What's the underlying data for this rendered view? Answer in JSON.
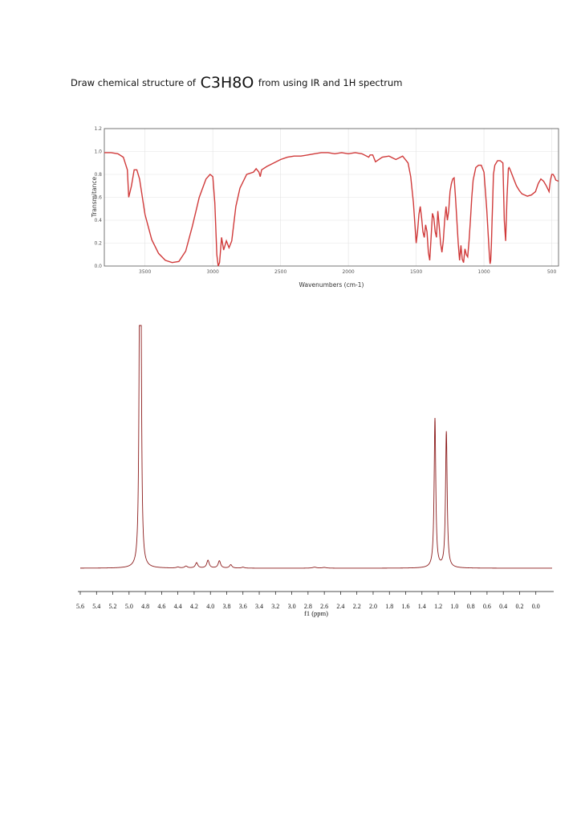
{
  "prompt": {
    "before": "Draw chemical structure of ",
    "formula": "C3H8O",
    "after": " from using IR and 1H spectrum"
  },
  "chart_data": [
    {
      "type": "line",
      "title": "",
      "xlabel": "Wavenumbers (cm-1)",
      "ylabel": "Transmitance",
      "xlim": [
        3800,
        450
      ],
      "ylim": [
        0,
        1.2
      ],
      "x_ticks": [
        3500,
        3000,
        2500,
        2000,
        1500,
        1000,
        500
      ],
      "y_ticks": [
        0.0,
        0.2,
        0.4,
        0.6,
        0.8,
        1.0,
        1.2
      ],
      "grid": true,
      "color": "#d03a3a",
      "series": [
        {
          "x": [
            3800,
            3750,
            3700,
            3660,
            3630,
            3620,
            3600,
            3580,
            3560,
            3540,
            3500,
            3450,
            3400,
            3350,
            3300,
            3250,
            3200,
            3150,
            3100,
            3050,
            3020,
            3000,
            2985,
            2970,
            2960,
            2950,
            2935,
            2920,
            2900,
            2880,
            2860,
            2830,
            2800,
            2750,
            2700,
            2680,
            2660,
            2650,
            2640,
            2600,
            2550,
            2500,
            2450,
            2400,
            2350,
            2300,
            2250,
            2200,
            2150,
            2100,
            2050,
            2000,
            1950,
            1900,
            1850,
            1840,
            1820,
            1800,
            1750,
            1700,
            1650,
            1600,
            1560,
            1540,
            1520,
            1500,
            1490,
            1480,
            1470,
            1460,
            1450,
            1440,
            1430,
            1420,
            1410,
            1400,
            1390,
            1380,
            1370,
            1360,
            1350,
            1340,
            1330,
            1320,
            1310,
            1300,
            1290,
            1280,
            1270,
            1260,
            1250,
            1240,
            1230,
            1220,
            1210,
            1200,
            1190,
            1180,
            1170,
            1160,
            1150,
            1140,
            1130,
            1120,
            1110,
            1100,
            1090,
            1080,
            1060,
            1040,
            1020,
            1000,
            980,
            960,
            955,
            950,
            945,
            940,
            935,
            930,
            920,
            900,
            880,
            860,
            850,
            840,
            830,
            820,
            815,
            810,
            800,
            780,
            760,
            740,
            720,
            700,
            680,
            650,
            620,
            600,
            580,
            560,
            540,
            520,
            510,
            500,
            490,
            480,
            470,
            450
          ],
          "y": [
            0.99,
            0.99,
            0.98,
            0.95,
            0.84,
            0.6,
            0.7,
            0.84,
            0.84,
            0.76,
            0.45,
            0.23,
            0.11,
            0.05,
            0.03,
            0.04,
            0.13,
            0.35,
            0.6,
            0.76,
            0.8,
            0.78,
            0.55,
            0.1,
            0.0,
            0.03,
            0.25,
            0.14,
            0.22,
            0.16,
            0.22,
            0.52,
            0.68,
            0.8,
            0.82,
            0.85,
            0.82,
            0.78,
            0.84,
            0.87,
            0.9,
            0.93,
            0.95,
            0.96,
            0.96,
            0.97,
            0.98,
            0.99,
            0.99,
            0.98,
            0.99,
            0.98,
            0.99,
            0.98,
            0.95,
            0.97,
            0.97,
            0.91,
            0.95,
            0.96,
            0.93,
            0.96,
            0.9,
            0.78,
            0.55,
            0.2,
            0.3,
            0.45,
            0.52,
            0.42,
            0.3,
            0.25,
            0.36,
            0.3,
            0.12,
            0.05,
            0.25,
            0.46,
            0.42,
            0.3,
            0.25,
            0.48,
            0.35,
            0.2,
            0.12,
            0.22,
            0.4,
            0.52,
            0.4,
            0.48,
            0.65,
            0.72,
            0.76,
            0.77,
            0.6,
            0.4,
            0.2,
            0.05,
            0.18,
            0.06,
            0.03,
            0.15,
            0.1,
            0.08,
            0.22,
            0.4,
            0.6,
            0.75,
            0.86,
            0.88,
            0.88,
            0.82,
            0.5,
            0.1,
            0.02,
            0.05,
            0.2,
            0.4,
            0.6,
            0.8,
            0.88,
            0.92,
            0.92,
            0.9,
            0.4,
            0.22,
            0.6,
            0.85,
            0.86,
            0.85,
            0.82,
            0.76,
            0.7,
            0.66,
            0.63,
            0.62,
            0.61,
            0.62,
            0.65,
            0.72,
            0.76,
            0.74,
            0.7,
            0.65,
            0.75,
            0.8,
            0.8,
            0.78,
            0.75,
            0.74
          ]
        }
      ]
    },
    {
      "type": "line",
      "title": "",
      "xlabel": "f1 (ppm)",
      "ylabel": "",
      "xlim": [
        5.6,
        -0.2
      ],
      "x_ticks": [
        5.6,
        5.4,
        5.2,
        5.0,
        4.8,
        4.6,
        4.4,
        4.2,
        4.0,
        3.8,
        3.6,
        3.4,
        3.2,
        3.0,
        2.8,
        2.6,
        2.4,
        2.2,
        2.0,
        1.8,
        1.6,
        1.4,
        1.2,
        1.0,
        0.8,
        0.6,
        0.4,
        0.2,
        0.0
      ],
      "color": "#8b1a1a",
      "peaks": [
        {
          "shift": 4.87,
          "height": 1.0,
          "width": 0.01
        },
        {
          "shift": 4.855,
          "height": 1.0,
          "width": 0.01
        },
        {
          "shift": 4.4,
          "height": 0.004,
          "width": 0.02
        },
        {
          "shift": 4.3,
          "height": 0.008,
          "width": 0.02
        },
        {
          "shift": 4.17,
          "height": 0.022,
          "width": 0.018
        },
        {
          "shift": 4.03,
          "height": 0.032,
          "width": 0.018
        },
        {
          "shift": 3.89,
          "height": 0.03,
          "width": 0.018
        },
        {
          "shift": 3.75,
          "height": 0.014,
          "width": 0.018
        },
        {
          "shift": 3.6,
          "height": 0.004,
          "width": 0.02
        },
        {
          "shift": 2.72,
          "height": 0.004,
          "width": 0.03
        },
        {
          "shift": 2.6,
          "height": 0.003,
          "width": 0.03
        },
        {
          "shift": 1.24,
          "height": 0.615,
          "width": 0.012
        },
        {
          "shift": 1.1,
          "height": 0.56,
          "width": 0.012
        }
      ]
    }
  ]
}
